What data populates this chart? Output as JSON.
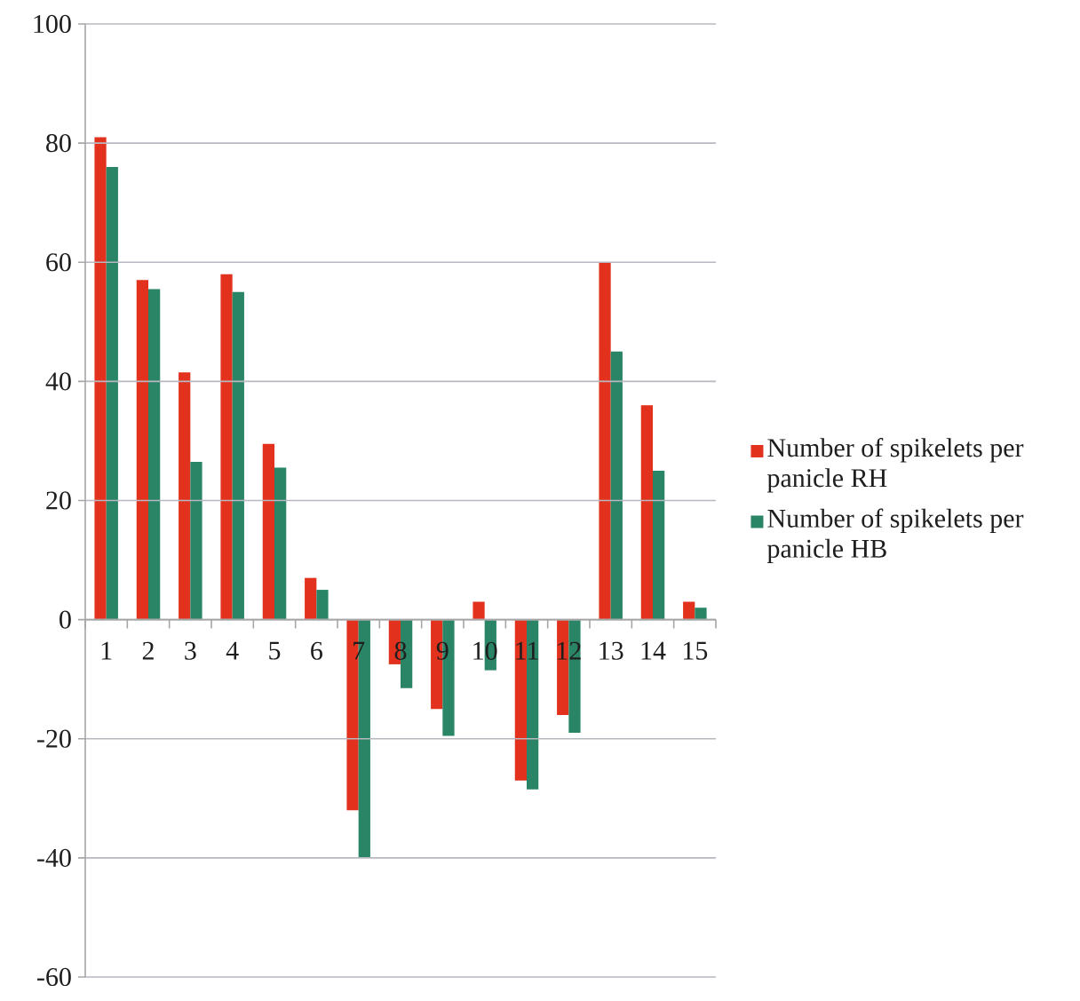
{
  "chart_data": {
    "type": "bar",
    "categories": [
      "1",
      "2",
      "3",
      "4",
      "5",
      "6",
      "7",
      "8",
      "9",
      "10",
      "11",
      "12",
      "13",
      "14",
      "15"
    ],
    "series": [
      {
        "name": "Number of spikelets per panicle RH",
        "color": "#e2311d",
        "values": [
          81,
          57,
          41.5,
          58,
          29.5,
          7,
          -32,
          -7.5,
          -15,
          3,
          -27,
          -16,
          60,
          36,
          3
        ]
      },
      {
        "name": "Number of spikelets per panicle HB",
        "color": "#2a8566",
        "values": [
          76,
          55.5,
          26.5,
          55,
          25.5,
          5,
          -40,
          -11.5,
          -19.5,
          -8.5,
          -28.5,
          -19,
          45,
          25,
          2
        ]
      }
    ],
    "ylim": [
      -60,
      100
    ],
    "yticks": [
      -60,
      -40,
      -20,
      0,
      20,
      40,
      60,
      80,
      100
    ],
    "grid": "y",
    "legend": "right"
  }
}
